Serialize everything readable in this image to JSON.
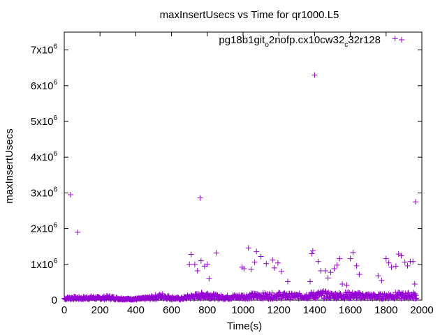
{
  "chart_data": {
    "type": "scatter",
    "title": "maxInsertUsecs vs Time for qr1000.L5",
    "xlabel": "Time(s)",
    "ylabel": "maxInsertUsecs",
    "xlim": [
      0,
      2000
    ],
    "ylim": [
      0,
      7500000
    ],
    "x_ticks": [
      0,
      200,
      400,
      600,
      800,
      1000,
      1200,
      1400,
      1600,
      1800,
      2000
    ],
    "x_tick_labels": [
      "0",
      "200",
      "400",
      "600",
      "800",
      "1000",
      "1200",
      "1400",
      "1600",
      "1800",
      "2000"
    ],
    "y_ticks": [
      0,
      1000000,
      2000000,
      3000000,
      4000000,
      5000000,
      6000000,
      7000000
    ],
    "y_tick_labels": [
      {
        "base": "0",
        "exp": ""
      },
      {
        "base": "1x10",
        "exp": "6"
      },
      {
        "base": "2x10",
        "exp": "6"
      },
      {
        "base": "3x10",
        "exp": "6"
      },
      {
        "base": "4x10",
        "exp": "6"
      },
      {
        "base": "5x10",
        "exp": "6"
      },
      {
        "base": "6x10",
        "exp": "6"
      },
      {
        "base": "7x10",
        "exp": "6"
      }
    ],
    "grid": false,
    "legend_position": "top-right",
    "series": [
      {
        "name_parts": [
          "pg18b1git",
          "o",
          "2nofp.cx10cw32",
          "c",
          "32r128"
        ],
        "color": "#9400d3",
        "marker": "+",
        "outliers": [
          [
            35,
            2950000
          ],
          [
            75,
            1900000
          ],
          [
            700,
            1000000
          ],
          [
            710,
            1280000
          ],
          [
            730,
            1000000
          ],
          [
            745,
            820000
          ],
          [
            760,
            2860000
          ],
          [
            765,
            1100000
          ],
          [
            785,
            950000
          ],
          [
            800,
            1000000
          ],
          [
            810,
            600000
          ],
          [
            850,
            1320000
          ],
          [
            995,
            920000
          ],
          [
            1005,
            880000
          ],
          [
            1030,
            1460000
          ],
          [
            1045,
            860000
          ],
          [
            1065,
            1060000
          ],
          [
            1075,
            1360000
          ],
          [
            1100,
            1220000
          ],
          [
            1130,
            1020000
          ],
          [
            1165,
            1120000
          ],
          [
            1175,
            900000
          ],
          [
            1195,
            1040000
          ],
          [
            1215,
            800000
          ],
          [
            1250,
            520000
          ],
          [
            1375,
            520000
          ],
          [
            1385,
            1300000
          ],
          [
            1390,
            1380000
          ],
          [
            1400,
            6300000
          ],
          [
            1420,
            1080000
          ],
          [
            1435,
            820000
          ],
          [
            1460,
            820000
          ],
          [
            1475,
            620000
          ],
          [
            1490,
            780000
          ],
          [
            1510,
            880000
          ],
          [
            1525,
            980000
          ],
          [
            1540,
            1160000
          ],
          [
            1555,
            450000
          ],
          [
            1580,
            420000
          ],
          [
            1600,
            1160000
          ],
          [
            1615,
            1330000
          ],
          [
            1635,
            960000
          ],
          [
            1650,
            720000
          ],
          [
            1755,
            680000
          ],
          [
            1775,
            550000
          ],
          [
            1800,
            1160000
          ],
          [
            1815,
            1040000
          ],
          [
            1830,
            920000
          ],
          [
            1850,
            7320000
          ],
          [
            1855,
            950000
          ],
          [
            1870,
            1290000
          ],
          [
            1885,
            1240000
          ],
          [
            1905,
            1060000
          ],
          [
            1920,
            960000
          ],
          [
            1935,
            1080000
          ],
          [
            1950,
            1080000
          ],
          [
            1960,
            450000
          ],
          [
            1965,
            2750000
          ]
        ],
        "baseline": [
          [
            0,
            60000
          ],
          [
            50,
            80000
          ],
          [
            100,
            70000
          ],
          [
            150,
            90000
          ],
          [
            200,
            70000
          ],
          [
            250,
            100000
          ],
          [
            300,
            60000
          ],
          [
            350,
            40000
          ],
          [
            400,
            40000
          ],
          [
            450,
            60000
          ],
          [
            500,
            100000
          ],
          [
            550,
            150000
          ],
          [
            600,
            80000
          ],
          [
            650,
            50000
          ],
          [
            700,
            120000
          ],
          [
            750,
            150000
          ],
          [
            800,
            200000
          ],
          [
            850,
            120000
          ],
          [
            900,
            100000
          ],
          [
            950,
            120000
          ],
          [
            1000,
            130000
          ],
          [
            1050,
            150000
          ],
          [
            1100,
            160000
          ],
          [
            1150,
            150000
          ],
          [
            1200,
            170000
          ],
          [
            1250,
            150000
          ],
          [
            1300,
            140000
          ],
          [
            1350,
            160000
          ],
          [
            1400,
            180000
          ],
          [
            1450,
            200000
          ],
          [
            1500,
            160000
          ],
          [
            1550,
            170000
          ],
          [
            1600,
            180000
          ],
          [
            1650,
            160000
          ],
          [
            1700,
            150000
          ],
          [
            1750,
            130000
          ],
          [
            1800,
            150000
          ],
          [
            1850,
            170000
          ],
          [
            1900,
            160000
          ],
          [
            1950,
            170000
          ],
          [
            1970,
            150000
          ]
        ]
      }
    ]
  }
}
